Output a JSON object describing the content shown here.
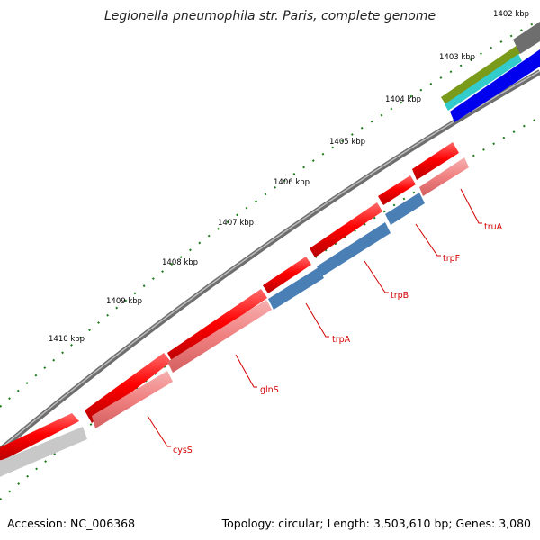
{
  "title": "Legionella pneumophila str. Paris, complete genome",
  "footer": {
    "accession": "Accession: NC_006368",
    "topology": "Topology: circular; Length: 3,503,610 bp; Genes: 3,080"
  },
  "ruler": [
    "1402 kbp",
    "1403 kbp",
    "1404 kbp",
    "1405 kbp",
    "1406 kbp",
    "1407 kbp",
    "1408 kbp",
    "1409 kbp",
    "1410 kbp"
  ],
  "genes": [
    "truA",
    "trpF",
    "trpB",
    "trpA",
    "glnS",
    "cysS"
  ],
  "colors": {
    "forward": "#ff0000",
    "reverse_light": "#f08080",
    "reverse_blue": "#4a7fb5",
    "backbone": "#808080",
    "ticks": "#1a7a1a",
    "labels": "#d40000",
    "olive": "#7a9a1a",
    "cyan": "#33cccc",
    "blue": "#0000ee"
  }
}
